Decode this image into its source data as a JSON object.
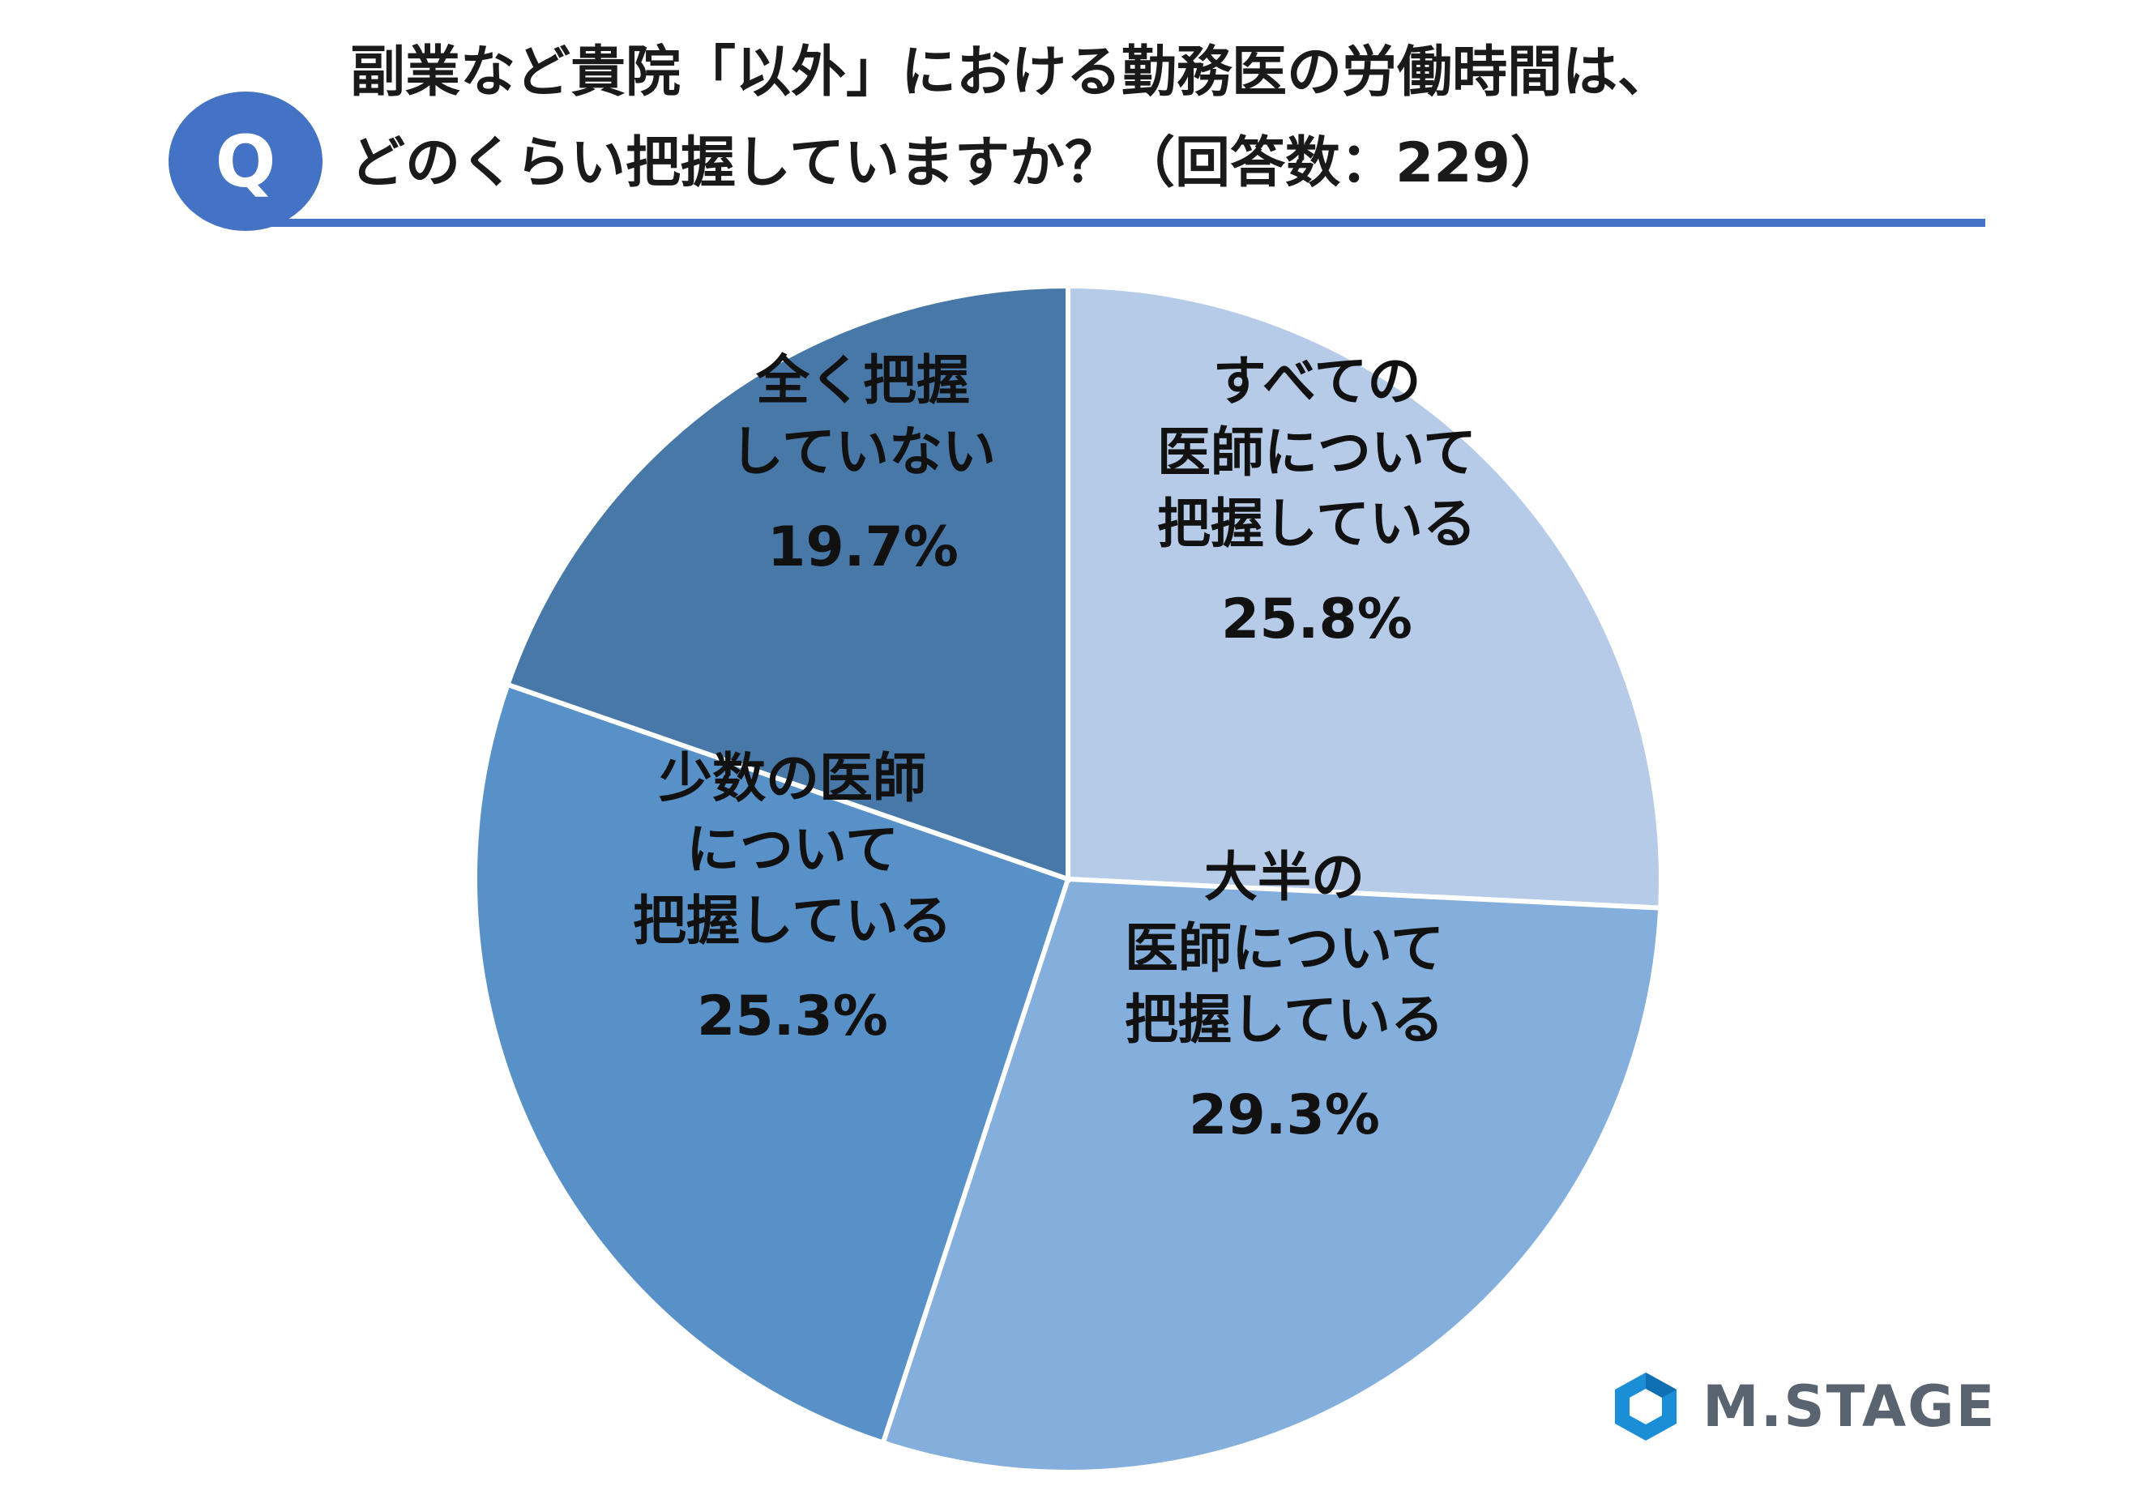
{
  "question": {
    "badge": "Q",
    "title_line1": "副業など貴院「以外」における勤務医の労働時間は、",
    "title_line2": "どのくらい把握していますか？（回答数：229）"
  },
  "chart_data": {
    "type": "pie",
    "start": "12 o'clock",
    "direction": "clockwise",
    "slices": [
      {
        "label_lines": [
          "すべての",
          "医師について",
          "把握している"
        ],
        "value": 25.8,
        "value_label": "25.8%",
        "color": "#b6cbe8"
      },
      {
        "label_lines": [
          "大半の",
          "医師について",
          "把握している"
        ],
        "value": 29.3,
        "value_label": "29.3%",
        "color": "#84aedc"
      },
      {
        "label_lines": [
          "少数の医師",
          "について",
          "把握している"
        ],
        "value": 25.3,
        "value_label": "25.3%",
        "color": "#5891c8"
      },
      {
        "label_lines": [
          "全く把握",
          "していない"
        ],
        "value": 19.7,
        "value_label": "19.7%",
        "color": "#4778a8"
      }
    ]
  },
  "logo": {
    "text": "M.STAGE",
    "icon": "hexagon-logo-icon",
    "color": "#1a8fd8"
  }
}
